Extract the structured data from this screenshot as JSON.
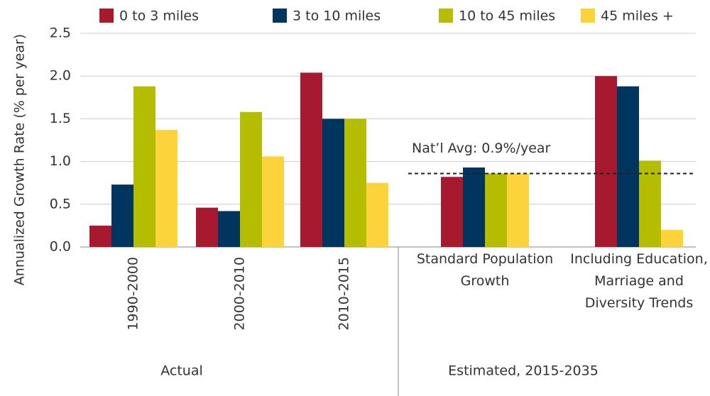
{
  "chart_data": {
    "type": "bar",
    "y_axis_label": "Annualized Growth Rate (% per year)",
    "categories": [
      "1990-2000",
      "2000-2010",
      "2010-2015",
      "Standard Population Growth",
      "Including Education, Marriage and Diversity Trends"
    ],
    "groups": [
      {
        "label": "Actual",
        "categories": [
          0,
          1,
          2
        ]
      },
      {
        "label": "Estimated, 2015-2035",
        "categories": [
          3,
          4
        ]
      }
    ],
    "series": [
      {
        "name": "0 to 3 miles",
        "color": "#a6192e",
        "values": [
          0.25,
          0.46,
          2.04,
          0.82,
          2.0
        ]
      },
      {
        "name": "3 to 10 miles",
        "color": "#00355f",
        "values": [
          0.73,
          0.42,
          1.5,
          0.93,
          1.88
        ]
      },
      {
        "name": "10 to 45 miles",
        "color": "#b5bd00",
        "values": [
          1.88,
          1.58,
          1.5,
          0.86,
          1.01
        ]
      },
      {
        "name": "45 miles +",
        "color": "#fdd33b",
        "values": [
          1.37,
          1.06,
          0.75,
          0.86,
          0.2
        ]
      }
    ],
    "reference_line": {
      "value": 0.86,
      "label": "Nat’l Avg: 0.9%/year"
    },
    "ylim": [
      0,
      2.5
    ],
    "yticks": [
      {
        "value": 0,
        "label": "0.0"
      },
      {
        "value": 0.5,
        "label": "0.5"
      },
      {
        "value": 1,
        "label": "1.0"
      },
      {
        "value": 1.5,
        "label": "1.5"
      },
      {
        "value": 2,
        "label": "2.0"
      },
      {
        "value": 2.5,
        "label": "2.5"
      }
    ],
    "grid": true,
    "legend": "top"
  }
}
